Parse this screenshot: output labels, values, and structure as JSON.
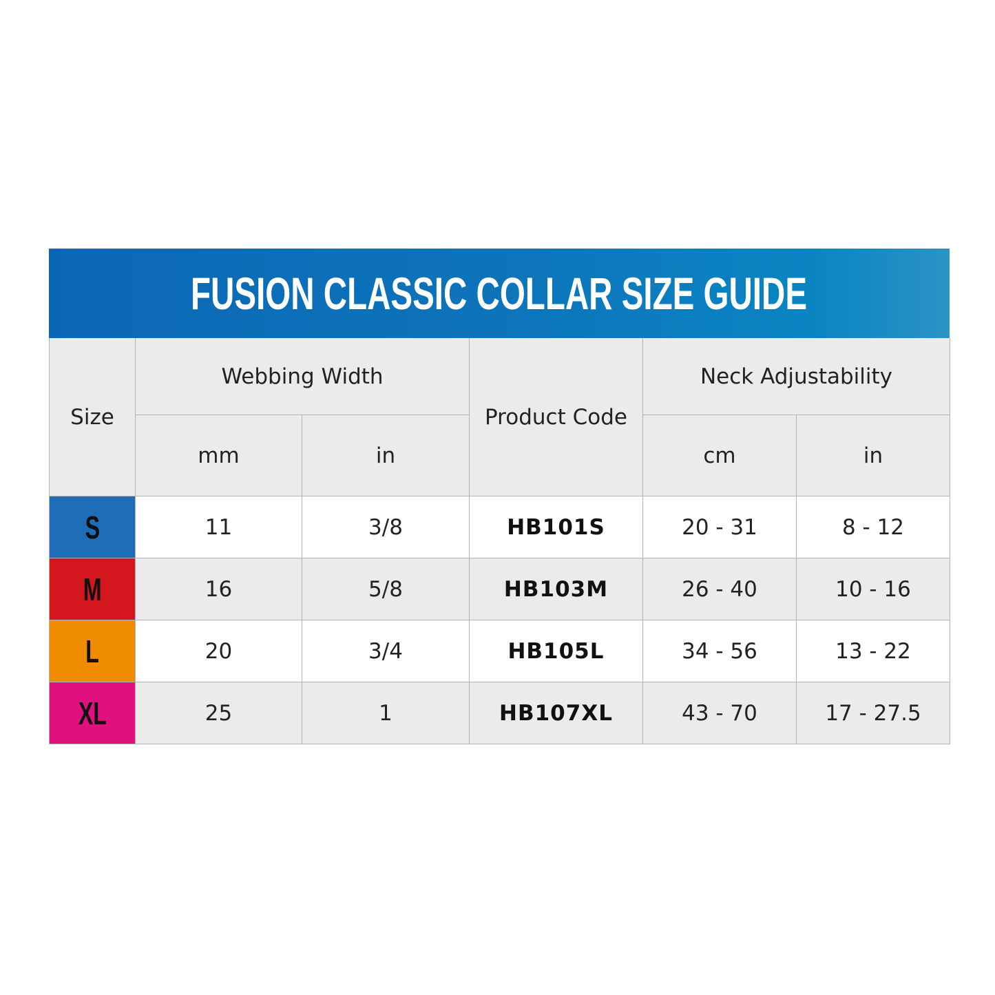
{
  "title": "FUSION CLASSIC COLLAR SIZE GUIDE",
  "headers": {
    "size": "Size",
    "webbing_width": "Webbing Width",
    "product_code": "Product Code",
    "neck_adjustability": "Neck Adjustability",
    "mm": "mm",
    "in_webbing": "in",
    "cm": "cm",
    "in_neck": "in"
  },
  "rows": [
    {
      "size": "S",
      "color": "#1f6db8",
      "mm": "11",
      "in": "3/8",
      "code": "HB101S",
      "cm": "20 - 31",
      "neck_in": "8 - 12"
    },
    {
      "size": "M",
      "color": "#d4171e",
      "mm": "16",
      "in": "5/8",
      "code": "HB103M",
      "cm": "26 - 40",
      "neck_in": "10 - 16"
    },
    {
      "size": "L",
      "color": "#f08c00",
      "mm": "20",
      "in": "3/4",
      "code": "HB105L",
      "cm": "34 - 56",
      "neck_in": "13 - 22"
    },
    {
      "size": "XL",
      "color": "#e0117f",
      "mm": "25",
      "in": "1",
      "code": "HB107XL",
      "cm": "43 - 70",
      "neck_in": "17 - 27.5"
    }
  ]
}
